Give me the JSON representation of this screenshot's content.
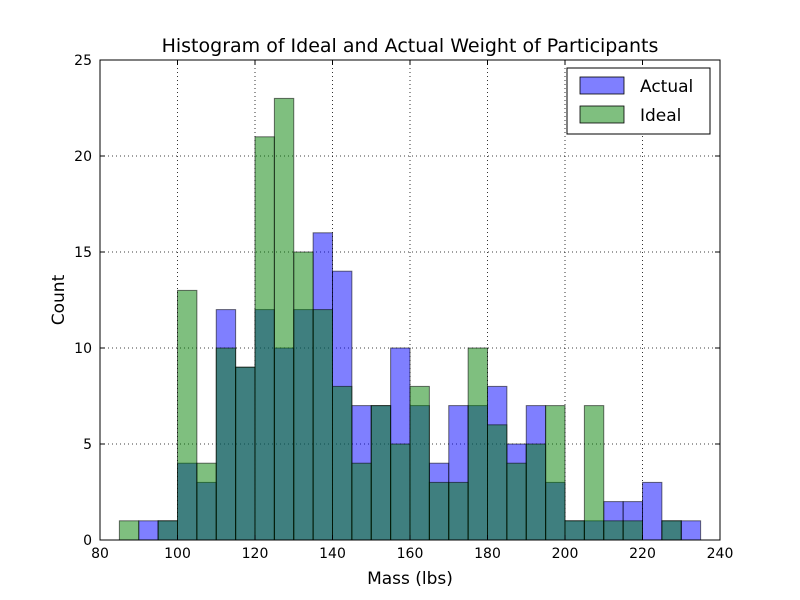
{
  "chart_data": {
    "type": "histogram",
    "title": "Histogram of Ideal and Actual Weight of Participants",
    "xlabel": "Mass (lbs)",
    "ylabel": "Count",
    "xlim": [
      80,
      240
    ],
    "ylim": [
      0,
      25
    ],
    "xticks": [
      80,
      100,
      120,
      140,
      160,
      180,
      200,
      220,
      240
    ],
    "yticks": [
      0,
      5,
      10,
      15,
      20,
      25
    ],
    "grid": true,
    "legend_position": "top-right",
    "series": [
      {
        "name": "Actual",
        "color": "#0000ff",
        "opacity": 0.5,
        "bins": [
          [
            90,
            95,
            1
          ],
          [
            95,
            100,
            1
          ],
          [
            100,
            105,
            4
          ],
          [
            105,
            110,
            3
          ],
          [
            110,
            115,
            12
          ],
          [
            115,
            120,
            9
          ],
          [
            120,
            125,
            12
          ],
          [
            125,
            130,
            10
          ],
          [
            130,
            135,
            12
          ],
          [
            135,
            140,
            16
          ],
          [
            140,
            145,
            14
          ],
          [
            145,
            150,
            7
          ],
          [
            150,
            155,
            7
          ],
          [
            155,
            160,
            10
          ],
          [
            160,
            165,
            7
          ],
          [
            165,
            170,
            4
          ],
          [
            170,
            175,
            7
          ],
          [
            175,
            180,
            7
          ],
          [
            180,
            185,
            8
          ],
          [
            185,
            190,
            5
          ],
          [
            190,
            195,
            7
          ],
          [
            195,
            200,
            3
          ],
          [
            200,
            205,
            1
          ],
          [
            205,
            210,
            1
          ],
          [
            210,
            215,
            2
          ],
          [
            215,
            220,
            2
          ],
          [
            220,
            225,
            3
          ],
          [
            225,
            230,
            1
          ],
          [
            230,
            235,
            1
          ]
        ]
      },
      {
        "name": "Ideal",
        "color": "#008000",
        "opacity": 0.5,
        "bins": [
          [
            85,
            90,
            1
          ],
          [
            90,
            95,
            0
          ],
          [
            95,
            100,
            1
          ],
          [
            100,
            105,
            13
          ],
          [
            105,
            110,
            4
          ],
          [
            110,
            115,
            10
          ],
          [
            115,
            120,
            9
          ],
          [
            120,
            125,
            21
          ],
          [
            125,
            130,
            23
          ],
          [
            130,
            135,
            15
          ],
          [
            135,
            140,
            12
          ],
          [
            140,
            145,
            8
          ],
          [
            145,
            150,
            4
          ],
          [
            150,
            155,
            7
          ],
          [
            155,
            160,
            5
          ],
          [
            160,
            165,
            8
          ],
          [
            165,
            170,
            3
          ],
          [
            170,
            175,
            3
          ],
          [
            175,
            180,
            10
          ],
          [
            180,
            185,
            6
          ],
          [
            185,
            190,
            4
          ],
          [
            190,
            195,
            5
          ],
          [
            195,
            200,
            7
          ],
          [
            200,
            205,
            1
          ],
          [
            205,
            210,
            7
          ],
          [
            210,
            215,
            1
          ],
          [
            215,
            220,
            1
          ],
          [
            220,
            225,
            0
          ],
          [
            225,
            230,
            1
          ]
        ]
      }
    ]
  }
}
